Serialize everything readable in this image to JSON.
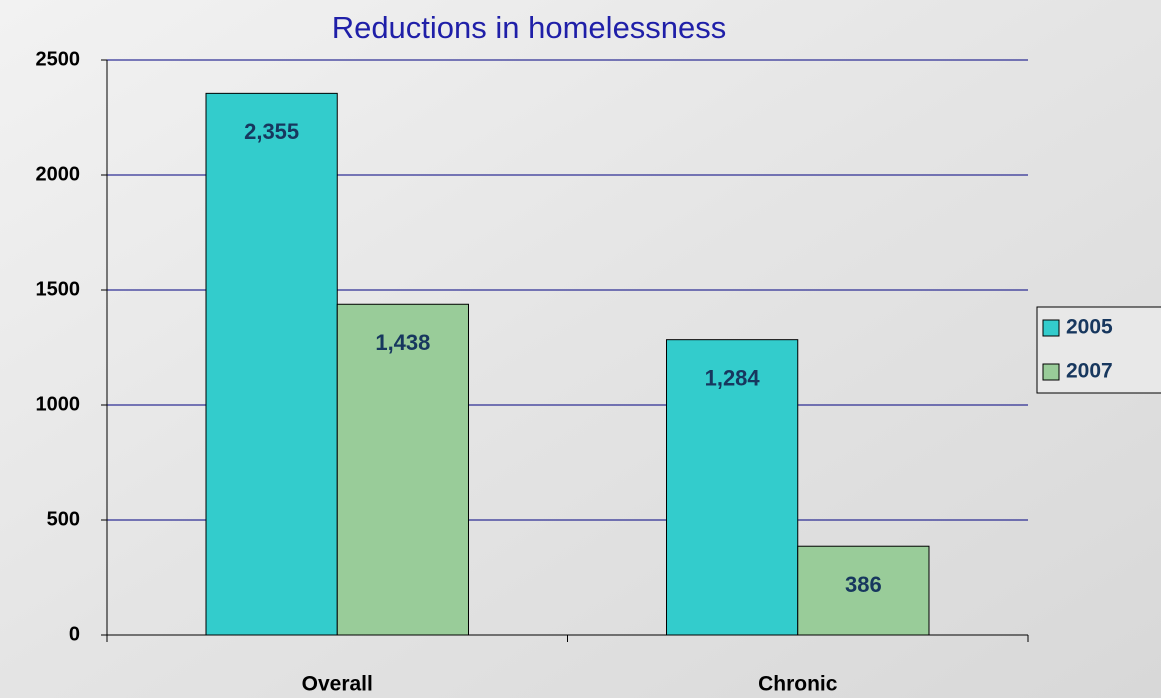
{
  "chart_data": {
    "type": "bar",
    "title": "Reductions in homelessness",
    "categories": [
      "Overall",
      "Chronic"
    ],
    "series": [
      {
        "name": "2005",
        "color": "#33cccc",
        "values": [
          2355,
          1284
        ],
        "value_labels": [
          "2,355",
          "1,284"
        ]
      },
      {
        "name": "2007",
        "color": "#99cc99",
        "values": [
          1438,
          386
        ],
        "value_labels": [
          "1,438",
          "386"
        ]
      }
    ],
    "ylim": [
      0,
      2500
    ],
    "yticks": [
      0,
      500,
      1000,
      1500,
      2000,
      2500
    ],
    "grid": true,
    "legend": "right"
  }
}
